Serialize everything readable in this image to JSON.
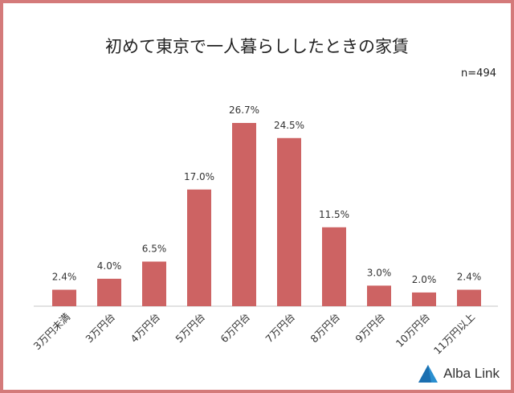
{
  "chart_data": {
    "type": "bar",
    "title": "初めて東京で一人暮らししたときの家賃",
    "annotation": "n=494",
    "categories": [
      "3万円未満",
      "3万円台",
      "4万円台",
      "5万円台",
      "6万円台",
      "7万円台",
      "8万円台",
      "9万円台",
      "10万円台",
      "11万円以上"
    ],
    "values": [
      2.4,
      4.0,
      6.5,
      17.0,
      26.7,
      24.5,
      11.5,
      3.0,
      2.0,
      2.4
    ],
    "value_labels": [
      "2.4%",
      "4.0%",
      "6.5%",
      "17.0%",
      "26.7%",
      "24.5%",
      "11.5%",
      "3.0%",
      "2.0%",
      "2.4%"
    ],
    "xlabel": "",
    "ylabel": "",
    "ylim": [
      0,
      30
    ],
    "grid": false,
    "bar_color": "#cd6363"
  },
  "logo": {
    "text": "Alba Link"
  }
}
